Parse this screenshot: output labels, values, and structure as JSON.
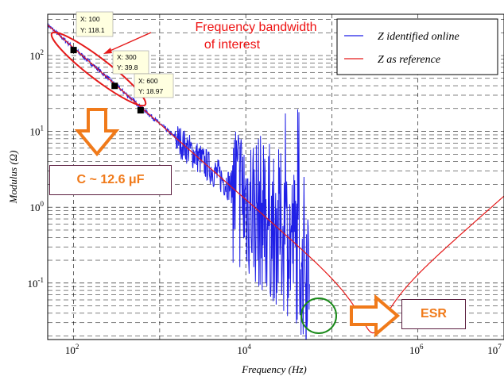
{
  "chart_data": {
    "type": "line",
    "title": "",
    "xlabel": "Frequency (Hz)",
    "ylabel": "Modulus (Ω)",
    "xscale": "log",
    "yscale": "log",
    "xlim": [
      50,
      10000000
    ],
    "ylim": [
      0.018,
      350
    ],
    "grid": true,
    "legend_position": "top-right",
    "xticks": [
      {
        "base": "10",
        "exp": "2"
      },
      {
        "base": "10",
        "exp": "4"
      },
      {
        "base": "10",
        "exp": "6"
      },
      {
        "base": "10",
        "exp": "7"
      }
    ],
    "yticks": [
      {
        "base": "10",
        "exp": "2"
      },
      {
        "base": "10",
        "exp": "1"
      },
      {
        "base": "10",
        "exp": "0"
      },
      {
        "base": "10",
        "exp": "-1"
      }
    ],
    "series": [
      {
        "name": "Z identified online",
        "color": "#1f1fe6",
        "role": "identified",
        "freq_max": 55000
      },
      {
        "name": "Z as reference",
        "color": "#e51a1a",
        "role": "reference",
        "capacitance_uF": 12.6,
        "esr_ohm": 0.022,
        "resonance_hz": 300000
      }
    ],
    "datatips": [
      {
        "x_label": "X: 100",
        "y_label": "Y: 118.1",
        "x": 100,
        "y": 118.1
      },
      {
        "x_label": "X: 300",
        "y_label": "Y: 39.8",
        "x": 300,
        "y": 39.8
      },
      {
        "x_label": "X: 600",
        "y_label": "Y: 18.97",
        "x": 600,
        "y": 18.97
      }
    ],
    "annotations": {
      "bandwidth_line1": "Frequency bandwidth",
      "bandwidth_line2": "of interest",
      "capacitance": "C ~ 12.6 μF",
      "esr": "ESR"
    }
  },
  "colors": {
    "annotation_red": "#ee1111",
    "orange": "#f07a1a",
    "circle_green": "#1a8a1a",
    "box_border": "#5a1d3e"
  }
}
